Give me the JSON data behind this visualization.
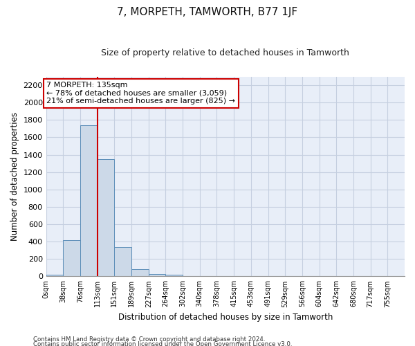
{
  "title": "7, MORPETH, TAMWORTH, B77 1JF",
  "subtitle": "Size of property relative to detached houses in Tamworth",
  "xlabel": "Distribution of detached houses by size in Tamworth",
  "ylabel": "Number of detached properties",
  "bar_color": "#ccd9e8",
  "bar_edge_color": "#5b8db8",
  "background_color": "#e8eef8",
  "grid_color": "#c5cfe0",
  "categories": [
    "0sqm",
    "38sqm",
    "76sqm",
    "113sqm",
    "151sqm",
    "189sqm",
    "227sqm",
    "264sqm",
    "302sqm",
    "340sqm",
    "378sqm",
    "415sqm",
    "453sqm",
    "491sqm",
    "529sqm",
    "566sqm",
    "604sqm",
    "642sqm",
    "680sqm",
    "717sqm",
    "755sqm"
  ],
  "values": [
    15,
    415,
    1740,
    1350,
    335,
    80,
    30,
    15,
    5,
    0,
    0,
    0,
    0,
    0,
    0,
    0,
    0,
    0,
    0,
    0,
    0
  ],
  "ylim": [
    0,
    2300
  ],
  "yticks": [
    0,
    200,
    400,
    600,
    800,
    1000,
    1200,
    1400,
    1600,
    1800,
    2000,
    2200
  ],
  "annotation_title": "7 MORPETH: 135sqm",
  "annotation_line1": "← 78% of detached houses are smaller (3,059)",
  "annotation_line2": "21% of semi-detached houses are larger (825) →",
  "annotation_box_color": "#ffffff",
  "annotation_border_color": "#cc0000",
  "marker_line_color": "#cc0000",
  "footer1": "Contains HM Land Registry data © Crown copyright and database right 2024.",
  "footer2": "Contains public sector information licensed under the Open Government Licence v3.0."
}
